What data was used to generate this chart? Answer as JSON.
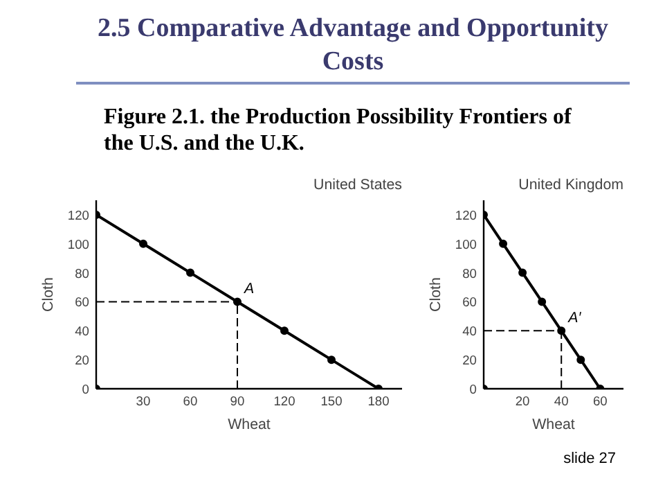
{
  "chart_data": [
    {
      "type": "line",
      "title": "United States",
      "xlabel": "Wheat",
      "ylabel": "Cloth",
      "xlim": [
        0,
        195
      ],
      "ylim": [
        0,
        130
      ],
      "xticks": [
        30,
        60,
        90,
        120,
        150,
        180
      ],
      "yticks": [
        0,
        20,
        40,
        60,
        80,
        100,
        120
      ],
      "grid": false,
      "marker": "circle",
      "line_style": "solid",
      "series": [
        {
          "color": "#000000",
          "x": [
            0,
            30,
            60,
            90,
            120,
            150,
            180
          ],
          "values": [
            120,
            100,
            80,
            60,
            40,
            20,
            0
          ]
        },
        {
          "type": "scatter",
          "color": "#000000",
          "x": [
            0
          ],
          "values": [
            0
          ]
        }
      ],
      "annotations": [
        {
          "text": "A",
          "x": 90,
          "y": 60
        },
        "2.5  Comparative Advantage and Opportunity Costs",
        "Figure 2.1. the Production Possibility Frontiers of the U.S. and the U.K.",
        "slide 27"
      ]
    },
    {
      "type": "line",
      "title": "United Kingdom",
      "xlabel": "Wheat",
      "ylabel": "Cloth",
      "xlim": [
        0,
        72
      ],
      "ylim": [
        0,
        130
      ],
      "xticks": [
        20,
        40,
        60
      ],
      "yticks": [
        0,
        20,
        40,
        60,
        80,
        100,
        120
      ],
      "grid": false,
      "marker": "circle",
      "line_style": "solid",
      "series": [
        {
          "color": "#000000",
          "x": [
            0,
            10,
            20,
            30,
            40,
            50,
            60
          ],
          "values": [
            120,
            100,
            80,
            60,
            40,
            20,
            0
          ]
        },
        {
          "type": "scatter",
          "color": "#000000",
          "x": [
            0
          ],
          "values": [
            0
          ]
        }
      ],
      "annotations": [
        {
          "text": "A′",
          "x": 40,
          "y": 40
        }
      ]
    }
  ]
}
